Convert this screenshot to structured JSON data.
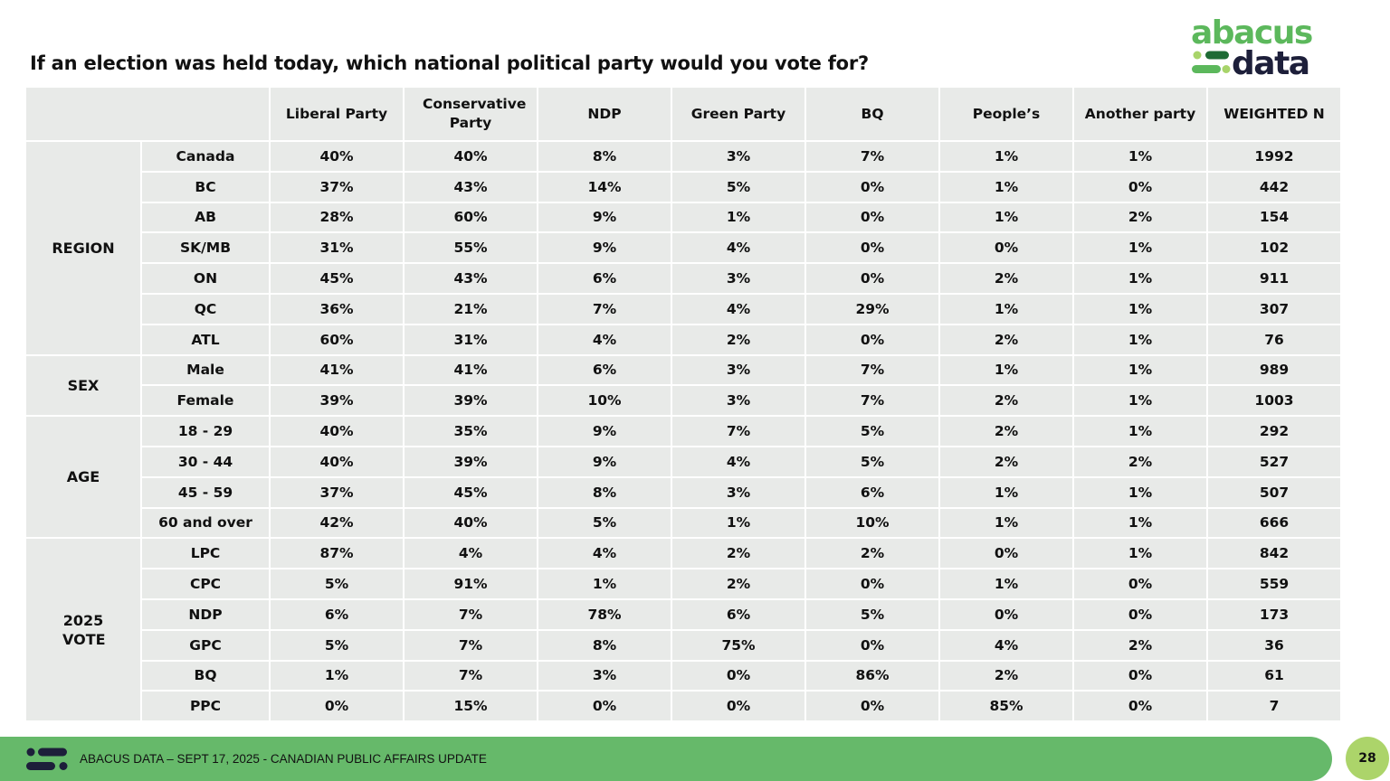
{
  "title": "If an election was held today, which national political party would you vote for?",
  "logo": {
    "text_top": "abacus",
    "text_bottom": "data",
    "colors": {
      "green": "#5cb85c",
      "dark_green": "#1e6b35",
      "lime": "#a8d46a",
      "navy": "#1d1f3a"
    }
  },
  "table": {
    "headers": [
      "Liberal Party",
      "Conservative Party",
      "NDP",
      "Green Party",
      "BQ",
      "People’s",
      "Another party",
      "WEIGHTED N"
    ],
    "groups": [
      {
        "label": "REGION",
        "rows": [
          {
            "label": "Canada",
            "values": [
              "40%",
              "40%",
              "8%",
              "3%",
              "7%",
              "1%",
              "1%",
              "1992"
            ]
          },
          {
            "label": "BC",
            "values": [
              "37%",
              "43%",
              "14%",
              "5%",
              "0%",
              "1%",
              "0%",
              "442"
            ]
          },
          {
            "label": "AB",
            "values": [
              "28%",
              "60%",
              "9%",
              "1%",
              "0%",
              "1%",
              "2%",
              "154"
            ]
          },
          {
            "label": "SK/MB",
            "values": [
              "31%",
              "55%",
              "9%",
              "4%",
              "0%",
              "0%",
              "1%",
              "102"
            ]
          },
          {
            "label": "ON",
            "values": [
              "45%",
              "43%",
              "6%",
              "3%",
              "0%",
              "2%",
              "1%",
              "911"
            ]
          },
          {
            "label": "QC",
            "values": [
              "36%",
              "21%",
              "7%",
              "4%",
              "29%",
              "1%",
              "1%",
              "307"
            ]
          },
          {
            "label": "ATL",
            "values": [
              "60%",
              "31%",
              "4%",
              "2%",
              "0%",
              "2%",
              "1%",
              "76"
            ]
          }
        ]
      },
      {
        "label": "SEX",
        "rows": [
          {
            "label": "Male",
            "values": [
              "41%",
              "41%",
              "6%",
              "3%",
              "7%",
              "1%",
              "1%",
              "989"
            ]
          },
          {
            "label": "Female",
            "values": [
              "39%",
              "39%",
              "10%",
              "3%",
              "7%",
              "2%",
              "1%",
              "1003"
            ]
          }
        ]
      },
      {
        "label": "AGE",
        "rows": [
          {
            "label": "18 - 29",
            "values": [
              "40%",
              "35%",
              "9%",
              "7%",
              "5%",
              "2%",
              "1%",
              "292"
            ]
          },
          {
            "label": "30 - 44",
            "values": [
              "40%",
              "39%",
              "9%",
              "4%",
              "5%",
              "2%",
              "2%",
              "527"
            ]
          },
          {
            "label": "45 - 59",
            "values": [
              "37%",
              "45%",
              "8%",
              "3%",
              "6%",
              "1%",
              "1%",
              "507"
            ]
          },
          {
            "label": "60 and over",
            "values": [
              "42%",
              "40%",
              "5%",
              "1%",
              "10%",
              "1%",
              "1%",
              "666"
            ]
          }
        ]
      },
      {
        "label": "2025 VOTE",
        "rows": [
          {
            "label": "LPC",
            "values": [
              "87%",
              "4%",
              "4%",
              "2%",
              "2%",
              "0%",
              "1%",
              "842"
            ]
          },
          {
            "label": "CPC",
            "values": [
              "5%",
              "91%",
              "1%",
              "2%",
              "0%",
              "1%",
              "0%",
              "559"
            ]
          },
          {
            "label": "NDP",
            "values": [
              "6%",
              "7%",
              "78%",
              "6%",
              "5%",
              "0%",
              "0%",
              "173"
            ]
          },
          {
            "label": "GPC",
            "values": [
              "5%",
              "7%",
              "8%",
              "75%",
              "0%",
              "4%",
              "2%",
              "36"
            ]
          },
          {
            "label": "BQ",
            "values": [
              "1%",
              "7%",
              "3%",
              "0%",
              "86%",
              "2%",
              "0%",
              "61"
            ]
          },
          {
            "label": "PPC",
            "values": [
              "0%",
              "15%",
              "0%",
              "0%",
              "0%",
              "85%",
              "0%",
              "7"
            ]
          }
        ]
      }
    ]
  },
  "footer": {
    "text": "ABACUS DATA – SEPT 17, 2025 - CANADIAN PUBLIC AFFAIRS UPDATE",
    "page_number": "28",
    "bar_color": "#66b96a",
    "badge_color": "#acd46a"
  }
}
